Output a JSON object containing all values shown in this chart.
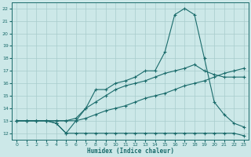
{
  "title": "",
  "xlabel": "Humidex (Indice chaleur)",
  "bg_color": "#cce8e8",
  "grid_color": "#a8cccc",
  "line_color": "#1a6b6b",
  "xlim": [
    -0.5,
    23.5
  ],
  "ylim": [
    11.5,
    22.5
  ],
  "xticks": [
    0,
    1,
    2,
    3,
    4,
    5,
    6,
    7,
    8,
    9,
    10,
    11,
    12,
    13,
    14,
    15,
    16,
    17,
    18,
    19,
    20,
    21,
    22,
    23
  ],
  "yticks": [
    12,
    13,
    14,
    15,
    16,
    17,
    18,
    19,
    20,
    21,
    22
  ],
  "line1_x": [
    0,
    1,
    2,
    3,
    4,
    5,
    6,
    7,
    8,
    9,
    10,
    11,
    12,
    13,
    14,
    15,
    16,
    17,
    18,
    19,
    20,
    21,
    22,
    23
  ],
  "line1_y": [
    13,
    13,
    13,
    13,
    12.8,
    12,
    12,
    12,
    12,
    12,
    12,
    12,
    12,
    12,
    12,
    12,
    12,
    12,
    12,
    12,
    12,
    12,
    12,
    11.8
  ],
  "line2_x": [
    0,
    1,
    2,
    3,
    4,
    5,
    6,
    7,
    8,
    9,
    10,
    11,
    12,
    13,
    14,
    15,
    16,
    17,
    18,
    19,
    20,
    21,
    22,
    23
  ],
  "line2_y": [
    13,
    13,
    13,
    13,
    13,
    13,
    13,
    13.2,
    13.5,
    13.8,
    14,
    14.2,
    14.5,
    14.8,
    15,
    15.2,
    15.5,
    15.8,
    16,
    16.2,
    16.5,
    16.8,
    17,
    17.2
  ],
  "line3_x": [
    0,
    1,
    2,
    3,
    4,
    5,
    6,
    7,
    8,
    9,
    10,
    11,
    12,
    13,
    14,
    15,
    16,
    17,
    18,
    19,
    20,
    21,
    22,
    23
  ],
  "line3_y": [
    13,
    13,
    13,
    13,
    13,
    13,
    13.2,
    14,
    14.5,
    15,
    15.5,
    15.8,
    16,
    16.2,
    16.5,
    16.8,
    17,
    17.2,
    17.5,
    17,
    16.7,
    16.5,
    16.5,
    16.5
  ],
  "line4_x": [
    0,
    1,
    2,
    3,
    4,
    5,
    6,
    7,
    8,
    9,
    10,
    11,
    12,
    13,
    14,
    15,
    16,
    17,
    18,
    19,
    20,
    21,
    22,
    23
  ],
  "line4_y": [
    13,
    13,
    13,
    13,
    12.8,
    12,
    13,
    14,
    15.5,
    15.5,
    16,
    16.2,
    16.5,
    17,
    17,
    18.5,
    21.5,
    22,
    21.5,
    18,
    14.5,
    13.5,
    12.8,
    12.5
  ]
}
